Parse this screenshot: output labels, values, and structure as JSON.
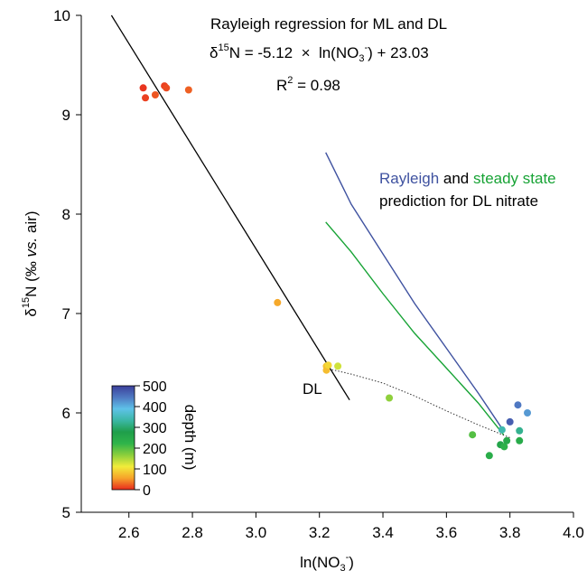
{
  "chart_data": {
    "type": "scatter",
    "title": "",
    "xlabel": {
      "base": "ln(NO",
      "sub": "3",
      "sup": "-",
      "tail": ")"
    },
    "ylabel": {
      "pre": "δ",
      "sup": "15",
      "tail": "N (‰ ",
      "italic": "vs.",
      "end": " air)"
    },
    "xlim": [
      2.45,
      4.0
    ],
    "ylim": [
      5.0,
      10.0
    ],
    "x_ticks": [
      "2.6",
      "2.8",
      "3.0",
      "3.2",
      "3.4",
      "3.6",
      "3.8",
      "4.0"
    ],
    "y_ticks": [
      "5",
      "6",
      "7",
      "8",
      "9",
      "10"
    ],
    "x_tick_values": [
      2.6,
      2.8,
      3.0,
      3.2,
      3.4,
      3.6,
      3.8,
      4.0
    ],
    "y_tick_values": [
      5,
      6,
      7,
      8,
      9,
      10
    ],
    "points": [
      {
        "x": 2.645,
        "y": 9.27,
        "depth": 5
      },
      {
        "x": 2.652,
        "y": 9.17,
        "depth": 10
      },
      {
        "x": 2.683,
        "y": 9.2,
        "depth": 20
      },
      {
        "x": 2.712,
        "y": 9.29,
        "depth": 10
      },
      {
        "x": 2.718,
        "y": 9.27,
        "depth": 15
      },
      {
        "x": 2.788,
        "y": 9.25,
        "depth": 25
      },
      {
        "x": 3.068,
        "y": 7.11,
        "depth": 60
      },
      {
        "x": 3.222,
        "y": 6.47,
        "depth": 80
      },
      {
        "x": 3.222,
        "y": 6.43,
        "depth": 75
      },
      {
        "x": 3.228,
        "y": 6.48,
        "depth": 95
      },
      {
        "x": 3.258,
        "y": 6.47,
        "depth": 130
      },
      {
        "x": 3.42,
        "y": 6.15,
        "depth": 165
      },
      {
        "x": 3.682,
        "y": 5.78,
        "depth": 200
      },
      {
        "x": 3.735,
        "y": 5.57,
        "depth": 240
      },
      {
        "x": 3.77,
        "y": 5.68,
        "depth": 260
      },
      {
        "x": 3.775,
        "y": 5.83,
        "depth": 340
      },
      {
        "x": 3.782,
        "y": 5.66,
        "depth": 230
      },
      {
        "x": 3.79,
        "y": 5.72,
        "depth": 250
      },
      {
        "x": 3.8,
        "y": 5.91,
        "depth": 470
      },
      {
        "x": 3.825,
        "y": 6.08,
        "depth": 445
      },
      {
        "x": 3.83,
        "y": 5.82,
        "depth": 320
      },
      {
        "x": 3.83,
        "y": 5.72,
        "depth": 245
      },
      {
        "x": 3.855,
        "y": 6.0,
        "depth": 420
      }
    ],
    "regression_line": {
      "x": [
        2.545,
        3.295
      ],
      "y": [
        10.0,
        6.13
      ]
    },
    "rayleigh_curve": {
      "x": [
        3.22,
        3.3,
        3.4,
        3.5,
        3.6,
        3.7,
        3.78
      ],
      "y": [
        8.62,
        8.1,
        7.6,
        7.1,
        6.65,
        6.2,
        5.82
      ]
    },
    "steady_state_curve": {
      "x": [
        3.22,
        3.3,
        3.4,
        3.5,
        3.6,
        3.7,
        3.78
      ],
      "y": [
        7.92,
        7.62,
        7.2,
        6.8,
        6.45,
        6.1,
        5.78
      ]
    },
    "mixing_curve": {
      "x": [
        3.22,
        3.3,
        3.4,
        3.5,
        3.6,
        3.7,
        3.8
      ],
      "y": [
        6.45,
        6.39,
        6.3,
        6.17,
        6.02,
        5.88,
        5.75
      ]
    },
    "colorbar": {
      "label": "depth (m)",
      "ticks": [
        "500",
        "400",
        "300",
        "200",
        "100",
        "0"
      ],
      "tick_values": [
        500,
        400,
        300,
        200,
        100,
        0
      ],
      "range": [
        0,
        500
      ],
      "stops": [
        "#e82a1e",
        "#f6a32a",
        "#f2ec3a",
        "#8ccf3c",
        "#2fb44a",
        "#1f9e4a",
        "#3bb7a5",
        "#5ec2e8",
        "#4f79c2",
        "#3b3f9a"
      ]
    },
    "colors": {
      "rayleigh": "#3f52a0",
      "steady_state": "#17a335",
      "regression": "#000000",
      "mixing": "#333333"
    }
  },
  "annotations": {
    "title_line": "Rayleigh regression for ML and DL",
    "equation": {
      "delta": "δ",
      "sup": "15",
      "part1": "N = -5.12  ×  ln(NO",
      "sub": "3",
      "sup2": "-",
      "part2": ") + 23.03"
    },
    "r2": {
      "pre": "R",
      "sup": "2",
      "post": " = 0.98"
    },
    "dl_label": "DL",
    "legend_rayleigh": "Rayleigh",
    "legend_and": " and ",
    "legend_steady": "steady state",
    "legend_line2": "prediction for DL nitrate"
  }
}
